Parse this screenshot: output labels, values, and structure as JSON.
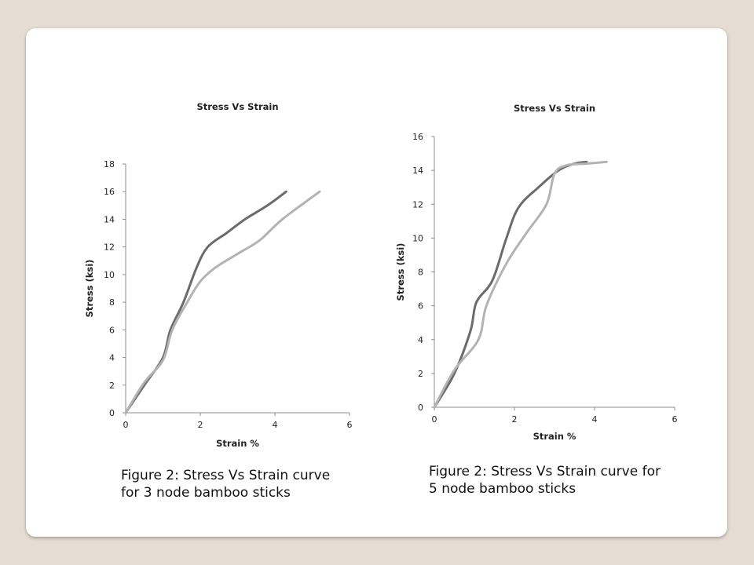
{
  "chart_data": [
    {
      "type": "line",
      "title": "Stress Vs Strain",
      "xlabel": "Strain %",
      "ylabel": "Stress (ksi)",
      "xlim": [
        0,
        6
      ],
      "ylim": [
        0,
        18
      ],
      "xticks": [
        "0",
        "2",
        "4",
        "6"
      ],
      "yticks": [
        "0",
        "2",
        "4",
        "6",
        "8",
        "10",
        "12",
        "14",
        "16",
        "18"
      ],
      "grid": false,
      "legend": "none",
      "series": [
        {
          "color": "#6b6b6b",
          "points": [
            [
              0,
              0
            ],
            [
              0.5,
              2
            ],
            [
              1.0,
              4
            ],
            [
              1.2,
              6
            ],
            [
              1.55,
              8
            ],
            [
              1.9,
              10.5
            ],
            [
              2.2,
              12
            ],
            [
              2.7,
              13
            ],
            [
              3.2,
              14
            ],
            [
              3.8,
              15
            ],
            [
              4.3,
              16
            ]
          ]
        },
        {
          "color": "#b3b3b3",
          "points": [
            [
              0,
              0
            ],
            [
              0.5,
              2.2
            ],
            [
              1.0,
              3.8
            ],
            [
              1.25,
              6
            ],
            [
              1.65,
              8
            ],
            [
              2.0,
              9.5
            ],
            [
              2.4,
              10.5
            ],
            [
              3.0,
              11.5
            ],
            [
              3.6,
              12.5
            ],
            [
              4.2,
              14
            ],
            [
              5.2,
              16
            ]
          ]
        }
      ]
    },
    {
      "type": "line",
      "title": "Stress Vs Strain",
      "xlabel": "Strain %",
      "ylabel": "Stress (ksi)",
      "xlim": [
        0,
        6
      ],
      "ylim": [
        0,
        16
      ],
      "xticks": [
        "0",
        "2",
        "4",
        "6"
      ],
      "yticks": [
        "0",
        "2",
        "4",
        "6",
        "8",
        "10",
        "12",
        "14",
        "16"
      ],
      "grid": false,
      "legend": "none",
      "series": [
        {
          "color": "#6b6b6b",
          "points": [
            [
              0,
              0
            ],
            [
              0.5,
              2
            ],
            [
              0.9,
              4.5
            ],
            [
              1.05,
              6.2
            ],
            [
              1.45,
              7.5
            ],
            [
              1.8,
              10
            ],
            [
              2.1,
              11.8
            ],
            [
              2.6,
              13
            ],
            [
              3.1,
              14
            ],
            [
              3.5,
              14.4
            ],
            [
              3.8,
              14.5
            ]
          ]
        },
        {
          "color": "#b3b3b3",
          "points": [
            [
              0,
              0
            ],
            [
              0.5,
              2.2
            ],
            [
              1.1,
              4
            ],
            [
              1.3,
              6
            ],
            [
              1.8,
              8.5
            ],
            [
              2.3,
              10.3
            ],
            [
              2.8,
              12
            ],
            [
              3.0,
              13.8
            ],
            [
              3.3,
              14.3
            ],
            [
              3.8,
              14.4
            ],
            [
              4.3,
              14.5
            ]
          ]
        }
      ]
    }
  ],
  "captions": [
    "Figure 2: Stress Vs Strain curve\nfor 3  node bamboo sticks",
    "Figure 2: Stress Vs Strain curve for\n5  node bamboo sticks"
  ]
}
